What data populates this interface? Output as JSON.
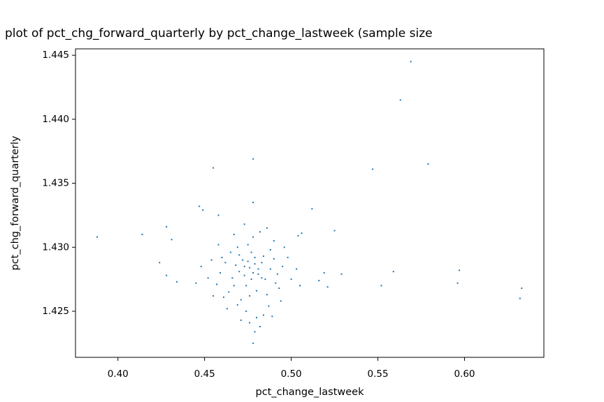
{
  "chart_data": {
    "type": "scatter",
    "title": "plot of pct_chg_forward_quarterly by pct_change_lastweek (sample size",
    "x_label": "pct_change_lastweek",
    "y_label": "pct_chg_forward_quarterly",
    "color": "#1f77b4",
    "xlim": [
      0.3755,
      0.6458
    ],
    "ylim": [
      1.4214,
      1.4455
    ],
    "xticks": [
      {
        "value": 0.4,
        "label": "0.40"
      },
      0.45,
      {
        "value": 0.5,
        "label": "0.50"
      },
      0.55,
      {
        "value": 0.6,
        "label": "0.60"
      }
    ],
    "yticks": [
      1.425,
      {
        "value": 1.43,
        "label": "1.430"
      },
      1.435,
      {
        "value": 1.44,
        "label": "1.440"
      },
      1.445
    ],
    "x": [
      0.388,
      0.414,
      0.428,
      0.431,
      0.424,
      0.428,
      0.434,
      0.455,
      0.478,
      0.547,
      0.569,
      0.563,
      0.579,
      0.512,
      0.525,
      0.597,
      0.596,
      0.633,
      0.632,
      0.559,
      0.552,
      0.529,
      0.519,
      0.516,
      0.521,
      0.506,
      0.504,
      0.478,
      0.479,
      0.447,
      0.449,
      0.458,
      0.478,
      0.476,
      0.481,
      0.472,
      0.485,
      0.47,
      0.479,
      0.474,
      0.483,
      0.468,
      0.488,
      0.477,
      0.473,
      0.48,
      0.466,
      0.49,
      0.462,
      0.492,
      0.475,
      0.486,
      0.471,
      0.478,
      0.482,
      0.469,
      0.459,
      0.495,
      0.498,
      0.457,
      0.464,
      0.487,
      0.474,
      0.48,
      0.476,
      0.484,
      0.469,
      0.461,
      0.493,
      0.5,
      0.503,
      0.454,
      0.452,
      0.467,
      0.473,
      0.486,
      0.49,
      0.458,
      0.496,
      0.463,
      0.489,
      0.482,
      0.471,
      0.448,
      0.445,
      0.505,
      0.455,
      0.494,
      0.477,
      0.479,
      0.475,
      0.481,
      0.473,
      0.478,
      0.484,
      0.47,
      0.476,
      0.467,
      0.488,
      0.465,
      0.491,
      0.46,
      0.483
    ],
    "y": [
      1.4308,
      1.431,
      1.4316,
      1.4306,
      1.4288,
      1.4278,
      1.4273,
      1.4362,
      1.4369,
      1.4361,
      1.4445,
      1.4415,
      1.4365,
      1.433,
      1.4313,
      1.4282,
      1.4272,
      1.4268,
      1.426,
      1.4281,
      1.427,
      1.4279,
      1.428,
      1.4274,
      1.4269,
      1.4311,
      1.4309,
      1.4225,
      1.4234,
      1.4332,
      1.4329,
      1.4325,
      1.4335,
      1.4284,
      1.4279,
      1.429,
      1.4275,
      1.4281,
      1.4292,
      1.427,
      1.4288,
      1.4286,
      1.4283,
      1.4296,
      1.4278,
      1.4266,
      1.4276,
      1.4291,
      1.4288,
      1.4279,
      1.4302,
      1.4263,
      1.4259,
      1.4308,
      1.4312,
      1.43,
      1.428,
      1.4285,
      1.4292,
      1.4271,
      1.4265,
      1.4254,
      1.425,
      1.4245,
      1.4241,
      1.4247,
      1.4255,
      1.4261,
      1.4268,
      1.4275,
      1.4283,
      1.429,
      1.4276,
      1.431,
      1.4318,
      1.4315,
      1.4305,
      1.4302,
      1.43,
      1.4252,
      1.4246,
      1.4238,
      1.4243,
      1.4285,
      1.4272,
      1.427,
      1.4262,
      1.4258,
      1.4275,
      1.4287,
      1.4289,
      1.4283,
      1.4285,
      1.428,
      1.4293,
      1.4294,
      1.4262,
      1.427,
      1.4298,
      1.4296,
      1.4272,
      1.4292,
      1.4276
    ]
  }
}
